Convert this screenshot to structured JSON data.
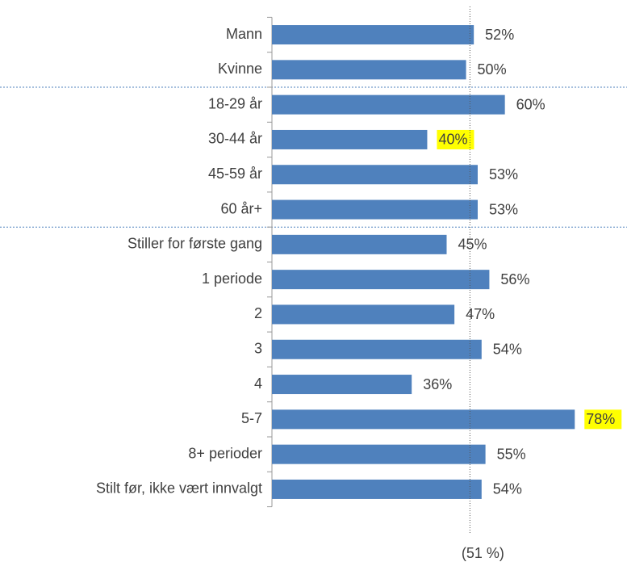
{
  "chart_data": {
    "type": "barh",
    "categories": [
      "Mann",
      "Kvinne",
      "18-29 år",
      "30-44 år",
      "45-59 år",
      "60 år+",
      "Stiller for første gang",
      "1 periode",
      "2",
      "3",
      "4",
      "5-7",
      "8+ perioder",
      "Stilt før, ikke vært innvalgt"
    ],
    "values": [
      52,
      50,
      60,
      40,
      53,
      53,
      45,
      56,
      47,
      54,
      36,
      78,
      55,
      54
    ],
    "value_labels": [
      "52%",
      "50%",
      "60%",
      "40%",
      "53%",
      "53%",
      "45%",
      "56%",
      "47%",
      "54%",
      "36%",
      "78%",
      "55%",
      "54%"
    ],
    "color": "#4f81bd",
    "xlim": [
      0,
      90
    ],
    "highlighted": [
      3,
      11
    ],
    "highlight_color": "#ffff00",
    "separators_after": [
      1,
      5
    ],
    "reference_line": {
      "value": 51,
      "label": "(51 %)"
    }
  }
}
